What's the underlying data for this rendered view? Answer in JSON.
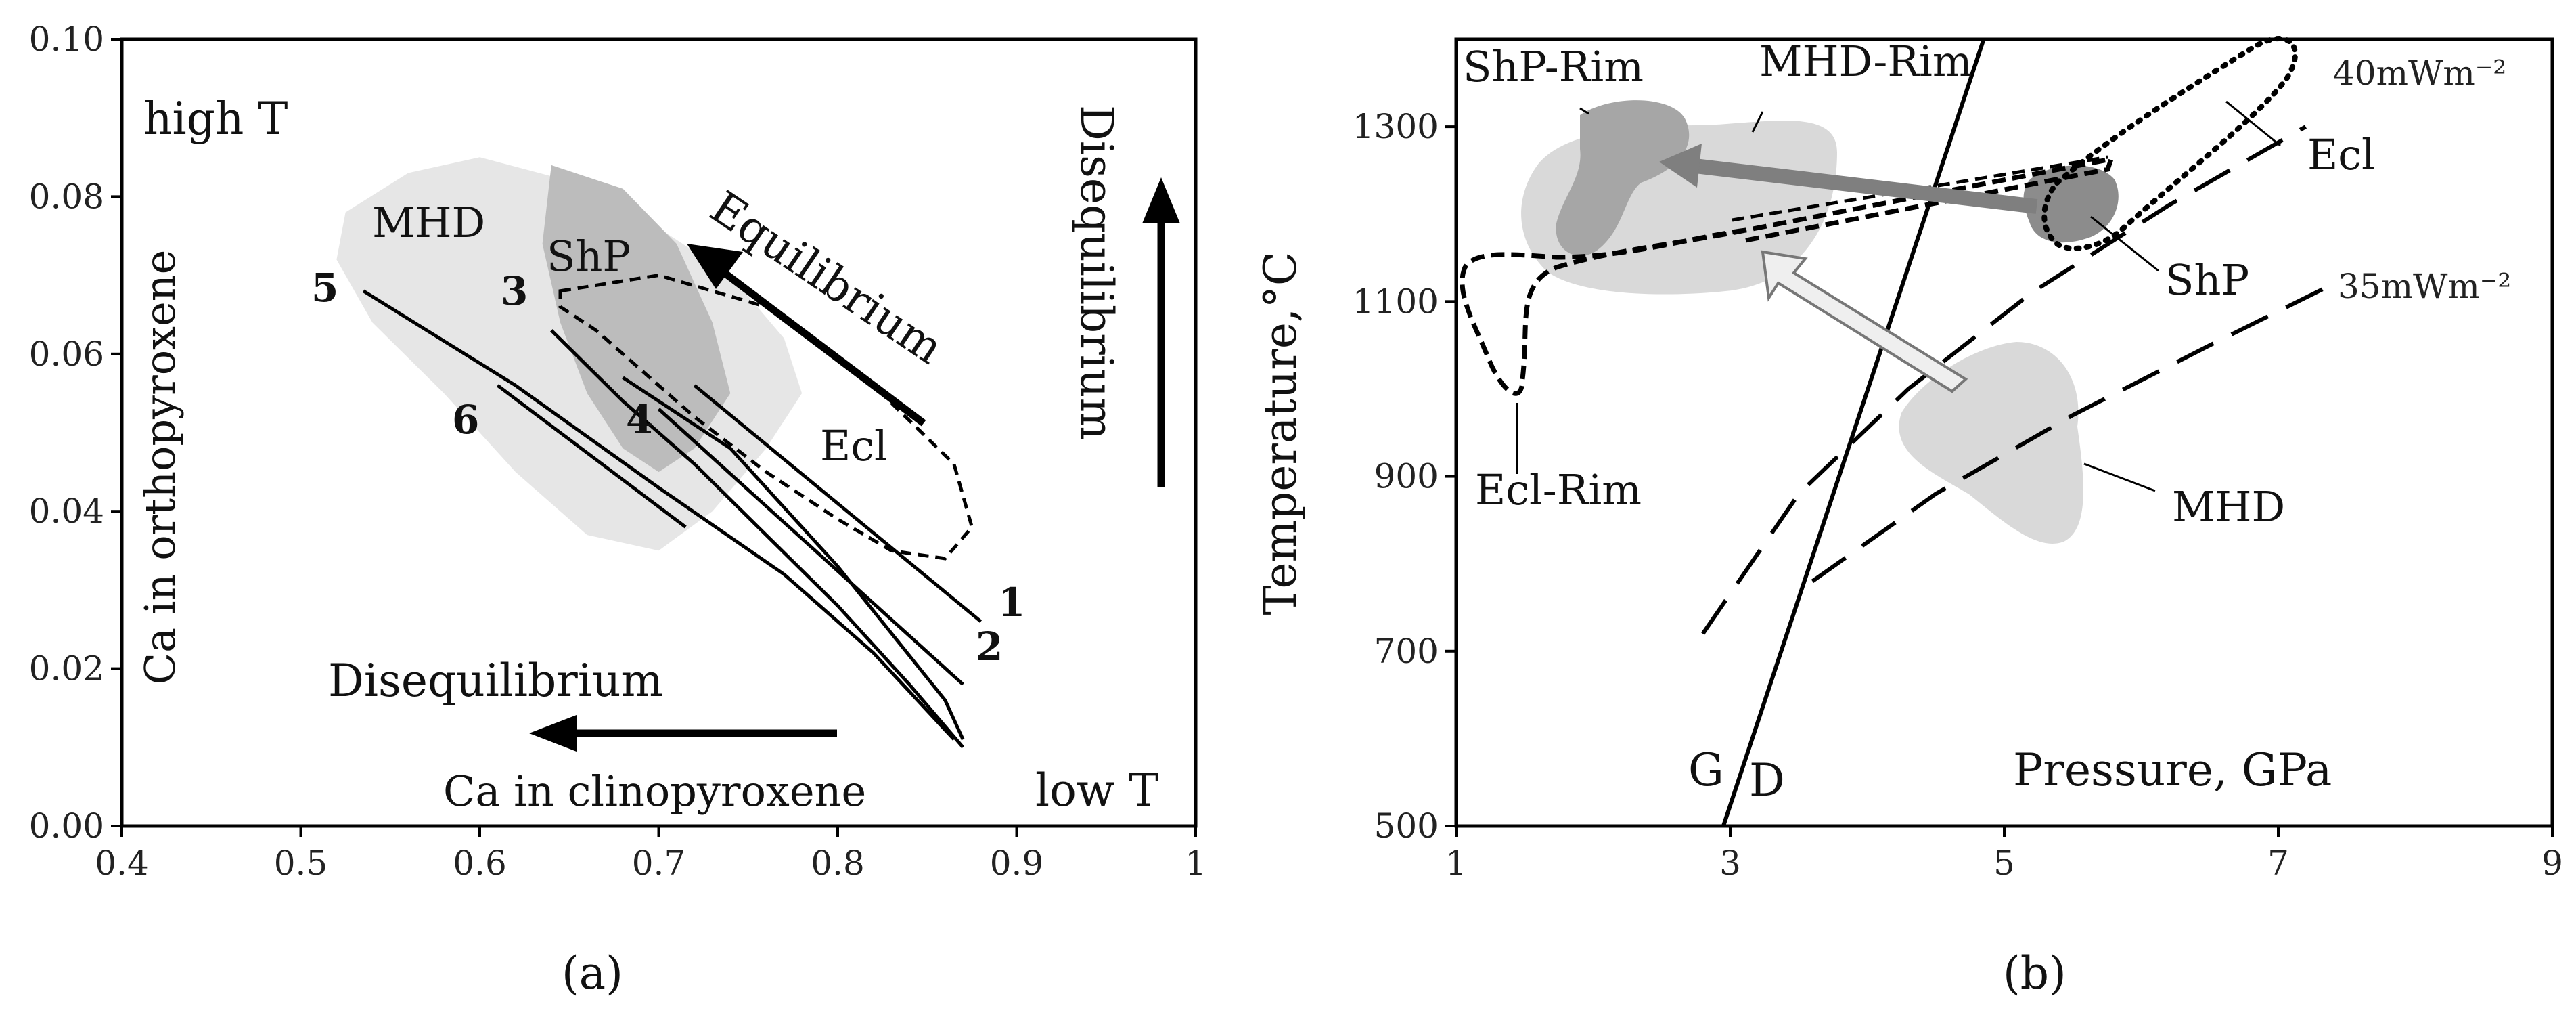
{
  "chart_data": [
    {
      "type": "scatter",
      "panel": "a",
      "caption": "(a)",
      "xlabel": "Ca in clinopyroxene",
      "ylabel": "Ca in orthopyroxene",
      "xlim": [
        0.4,
        1.0
      ],
      "ylim": [
        0.0,
        0.1
      ],
      "x_ticks": [
        "0.4",
        "0.5",
        "0.6",
        "0.7",
        "0.8",
        "0.9",
        "1"
      ],
      "y_ticks": [
        "0.00",
        "0.02",
        "0.04",
        "0.06",
        "0.08",
        "0.10"
      ],
      "annotations": {
        "high_t": "high T",
        "low_t": "low T",
        "equilibrium": "Equilibrium",
        "diseq_vertical": "Disequilibrium",
        "diseq_horizontal": "Disequilibrium"
      },
      "fields": [
        {
          "name": "MHD",
          "color": "#e6e6e6",
          "polygon": [
            [
              0.525,
              0.078
            ],
            [
              0.56,
              0.083
            ],
            [
              0.6,
              0.085
            ],
            [
              0.65,
              0.082
            ],
            [
              0.7,
              0.076
            ],
            [
              0.74,
              0.07
            ],
            [
              0.77,
              0.062
            ],
            [
              0.78,
              0.055
            ],
            [
              0.76,
              0.048
            ],
            [
              0.73,
              0.04
            ],
            [
              0.7,
              0.035
            ],
            [
              0.66,
              0.037
            ],
            [
              0.62,
              0.045
            ],
            [
              0.58,
              0.055
            ],
            [
              0.54,
              0.064
            ],
            [
              0.52,
              0.072
            ]
          ]
        },
        {
          "name": "ShP",
          "color": "#bcbcbc",
          "polygon": [
            [
              0.64,
              0.084
            ],
            [
              0.68,
              0.081
            ],
            [
              0.71,
              0.074
            ],
            [
              0.73,
              0.064
            ],
            [
              0.74,
              0.055
            ],
            [
              0.72,
              0.048
            ],
            [
              0.7,
              0.045
            ],
            [
              0.68,
              0.048
            ],
            [
              0.66,
              0.055
            ],
            [
              0.645,
              0.064
            ],
            [
              0.635,
              0.074
            ]
          ]
        },
        {
          "name": "Ecl",
          "color": "none",
          "style": "dashed",
          "polygon": [
            [
              0.645,
              0.068
            ],
            [
              0.7,
              0.07
            ],
            [
              0.76,
              0.066
            ],
            [
              0.82,
              0.056
            ],
            [
              0.865,
              0.046
            ],
            [
              0.875,
              0.038
            ],
            [
              0.86,
              0.034
            ],
            [
              0.83,
              0.035
            ],
            [
              0.8,
              0.039
            ],
            [
              0.76,
              0.045
            ],
            [
              0.72,
              0.052
            ],
            [
              0.69,
              0.058
            ],
            [
              0.665,
              0.063
            ],
            [
              0.645,
              0.066
            ]
          ]
        }
      ],
      "series": [
        {
          "name": "1",
          "x": [
            0.72,
            0.88
          ],
          "y": [
            0.056,
            0.026
          ]
        },
        {
          "name": "2",
          "x": [
            0.7,
            0.87
          ],
          "y": [
            0.053,
            0.018
          ]
        },
        {
          "name": "3",
          "x": [
            0.64,
            0.68,
            0.72,
            0.76,
            0.8,
            0.84,
            0.87
          ],
          "y": [
            0.063,
            0.054,
            0.046,
            0.037,
            0.028,
            0.018,
            0.01
          ]
        },
        {
          "name": "4",
          "x": [
            0.68,
            0.74,
            0.8,
            0.86,
            0.87
          ],
          "y": [
            0.057,
            0.048,
            0.033,
            0.016,
            0.011
          ]
        },
        {
          "name": "5",
          "x": [
            0.535,
            0.62,
            0.7,
            0.77,
            0.82,
            0.865
          ],
          "y": [
            0.068,
            0.056,
            0.043,
            0.032,
            0.022,
            0.011
          ]
        },
        {
          "name": "6",
          "x": [
            0.61,
            0.715
          ],
          "y": [
            0.056,
            0.038
          ]
        }
      ]
    },
    {
      "type": "line",
      "panel": "b",
      "caption": "(b)",
      "xlabel": "Pressure, GPa",
      "ylabel": "Temperature,°C",
      "xlim": [
        1,
        9
      ],
      "ylim": [
        500,
        1400
      ],
      "x_ticks": [
        "1",
        "3",
        "5",
        "7",
        "9"
      ],
      "y_ticks": [
        "500",
        "700",
        "900",
        "1100",
        "1300"
      ],
      "labels": {
        "shp_rim": "ShP-Rim",
        "mhd_rim": "MHD-Rim",
        "geotherm_40": "40mWm⁻²",
        "geotherm_35": "35mWm⁻²",
        "ecl": "Ecl",
        "shp": "ShP",
        "mhd": "MHD",
        "ecl_rim": "Ecl-Rim",
        "graphite": "G",
        "diamond": "D"
      },
      "series": [
        {
          "name": "Graphite-Diamond",
          "style": "solid",
          "x": [
            2.95,
            4.85
          ],
          "y": [
            500,
            1400
          ]
        },
        {
          "name": "40mWm⁻²",
          "style": "dashed",
          "x": [
            2.8,
            3.5,
            4.3,
            5.2,
            6.2,
            7.2
          ],
          "y": [
            720,
            880,
            1000,
            1110,
            1210,
            1300
          ]
        },
        {
          "name": "35mWm⁻²",
          "style": "dashed",
          "x": [
            3.6,
            4.5,
            5.5,
            6.5,
            7.4
          ],
          "y": [
            780,
            880,
            970,
            1050,
            1120
          ]
        }
      ],
      "fields": [
        {
          "name": "MHD-Rim",
          "color": "#d9d9d9",
          "center": [
            2.7,
            1220
          ]
        },
        {
          "name": "ShP-Rim",
          "color": "#a6a6a6",
          "center": [
            2.2,
            1230
          ]
        },
        {
          "name": "ShP",
          "color": "#8c8c8c",
          "center": [
            5.6,
            1190
          ]
        },
        {
          "name": "MHD",
          "color": "#d9d9d9",
          "center": [
            5.2,
            950
          ]
        },
        {
          "name": "Ecl",
          "color": "none",
          "style": "dotted"
        },
        {
          "name": "Ecl-Rim",
          "color": "none",
          "style": "dashed"
        }
      ]
    }
  ]
}
